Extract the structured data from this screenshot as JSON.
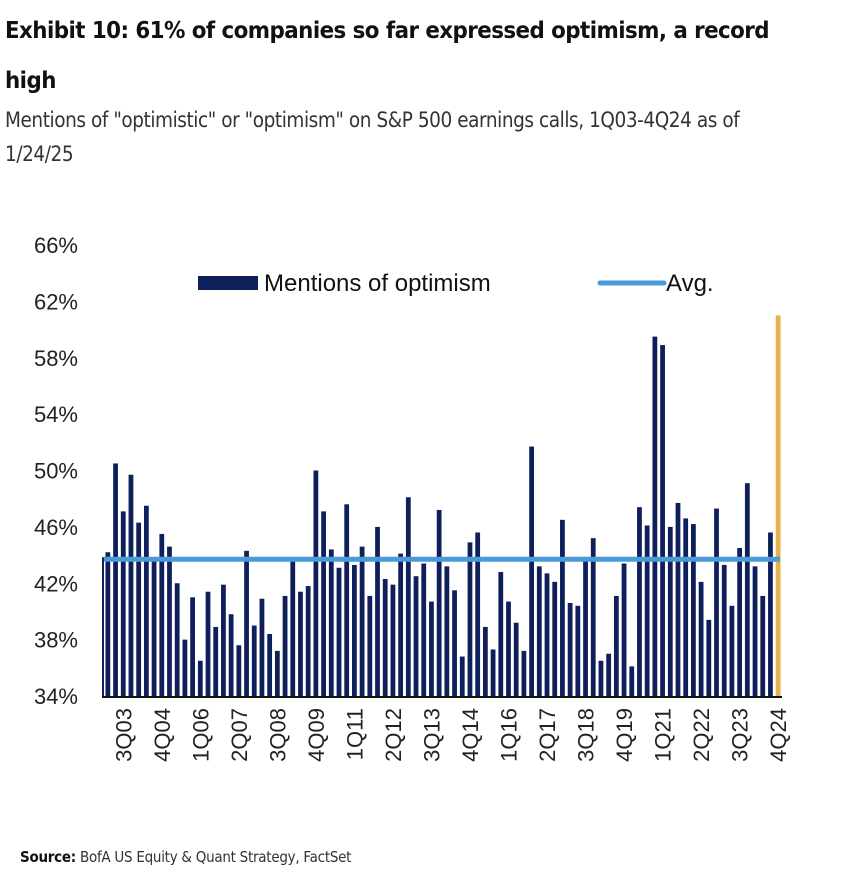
{
  "header": {
    "title": "Exhibit 10: 61% of companies so far expressed optimism, a record high",
    "subtitle": "Mentions of \"optimistic\" or \"optimism\" on S&P 500 earnings calls, 1Q03-4Q24 as of 1/24/25"
  },
  "footer": {
    "source_label": "Source:",
    "source_text": " BofA US Equity & Quant Strategy, FactSet"
  },
  "colors": {
    "bar": "#0e1f5c",
    "highlight_bar": "#e8b04a",
    "avg_line": "#4a9ad8",
    "axis": "#222222"
  },
  "chart_data": {
    "type": "bar",
    "title": "Exhibit 10: 61% of companies so far expressed optimism, a record high",
    "subtitle": "Mentions of \"optimistic\" or \"optimism\" on S&P 500 earnings calls, 1Q03-4Q24 as of 1/24/25",
    "xlabel": "",
    "ylabel": "",
    "ylim": [
      34,
      66
    ],
    "yticks": [
      34,
      38,
      42,
      46,
      50,
      54,
      58,
      62,
      66
    ],
    "ytick_labels": [
      "34%",
      "38%",
      "42%",
      "46%",
      "50%",
      "54%",
      "58%",
      "62%",
      "66%"
    ],
    "grid": false,
    "legend_position": "top",
    "legend": [
      {
        "label": "Mentions of optimism",
        "type": "bar"
      },
      {
        "label": "Avg.",
        "type": "line"
      }
    ],
    "first_quarter": "1Q03",
    "last_quarter": "4Q24",
    "xtick_labels": [
      "3Q03",
      "4Q04",
      "1Q06",
      "2Q07",
      "3Q08",
      "4Q09",
      "1Q11",
      "2Q12",
      "3Q13",
      "4Q14",
      "1Q16",
      "2Q17",
      "3Q18",
      "4Q19",
      "1Q21",
      "2Q22",
      "3Q23",
      "4Q24"
    ],
    "xtick_start_index": 2,
    "xtick_step": 5,
    "series": [
      {
        "name": "Mentions of optimism",
        "values": [
          44.2,
          50.5,
          47.1,
          49.7,
          46.3,
          47.5,
          43.7,
          45.5,
          44.6,
          42.0,
          38.0,
          41.0,
          36.5,
          41.4,
          38.9,
          41.9,
          39.8,
          37.6,
          44.3,
          39.0,
          40.9,
          38.4,
          37.2,
          41.1,
          43.8,
          41.4,
          41.8,
          50.0,
          47.1,
          44.4,
          43.1,
          47.6,
          43.3,
          44.6,
          41.1,
          46.0,
          42.3,
          41.9,
          44.1,
          48.1,
          42.5,
          43.4,
          40.7,
          47.2,
          43.2,
          41.5,
          36.8,
          44.9,
          45.6,
          38.9,
          37.3,
          42.8,
          40.7,
          39.2,
          37.2,
          51.7,
          43.2,
          42.7,
          42.1,
          46.5,
          40.6,
          40.4,
          43.8,
          45.2,
          36.5,
          37.0,
          41.1,
          43.4,
          36.1,
          47.4,
          46.1,
          59.5,
          58.9,
          46.0,
          47.7,
          46.6,
          46.2,
          42.1,
          39.4,
          47.3,
          43.3,
          40.4,
          44.5,
          49.1,
          43.2,
          41.1,
          45.6,
          61.0
        ]
      },
      {
        "name": "Avg.",
        "value": 43.7
      }
    ],
    "highlight_last": true
  }
}
